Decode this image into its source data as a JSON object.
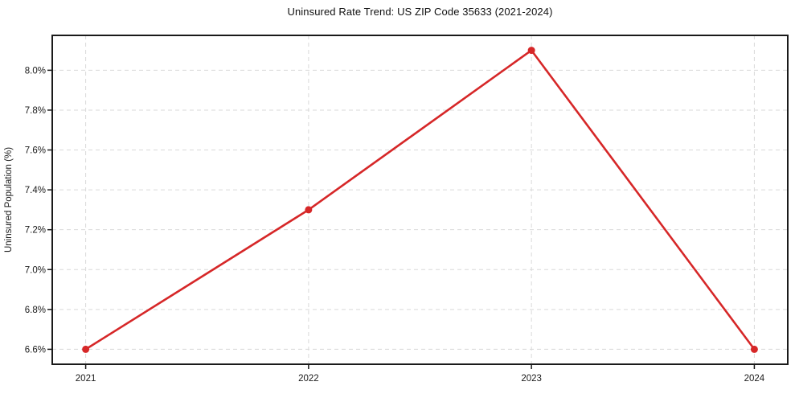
{
  "chart_data": {
    "type": "line",
    "title": "Uninsured Rate Trend: US ZIP Code 35633 (2021-2024)",
    "xlabel": "",
    "ylabel": "Uninsured Population (%)",
    "x": [
      2021,
      2022,
      2023,
      2024
    ],
    "values": [
      6.6,
      7.3,
      8.1,
      6.6
    ],
    "xtick_labels": [
      "2021",
      "2022",
      "2023",
      "2024"
    ],
    "yticks": [
      6.6,
      6.8,
      7.0,
      7.2,
      7.4,
      7.6,
      7.8,
      8.0
    ],
    "ytick_labels": [
      "6.6%",
      "6.8%",
      "7.0%",
      "7.2%",
      "7.4%",
      "7.6%",
      "7.8%",
      "8.0%"
    ],
    "xlim": [
      2020.85,
      2024.15
    ],
    "ylim": [
      6.525,
      8.175
    ],
    "grid": true,
    "grid_style": "dashed",
    "legend_position": "none",
    "line_color": "#d62728",
    "grid_color": "#d9d9d9",
    "spine_color": "#1a1a1a",
    "marker": "circle"
  }
}
